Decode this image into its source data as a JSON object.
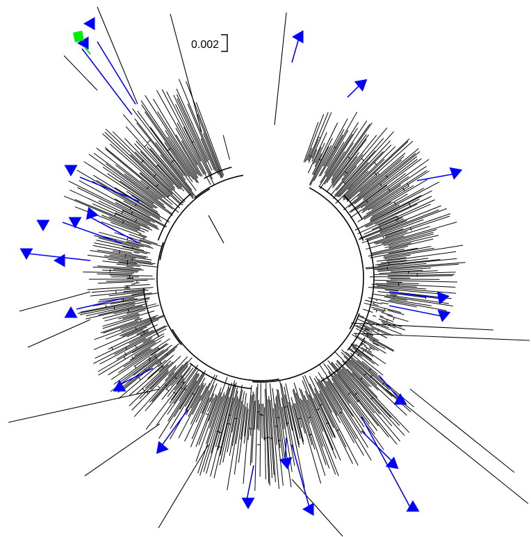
{
  "figure": {
    "type": "circular-phylogenetic-tree",
    "scale_bar": {
      "label": "0.002"
    },
    "colors": {
      "branch": "#000000",
      "highlight_branch": "#0000ff",
      "marker": "#0000ff",
      "marker_special": "#00ee00",
      "background": "#ffffff"
    },
    "marker_shape": "triangle",
    "special_marker_shape": "square",
    "highlighted_marker_count": 25,
    "special_marker_count": 1
  }
}
